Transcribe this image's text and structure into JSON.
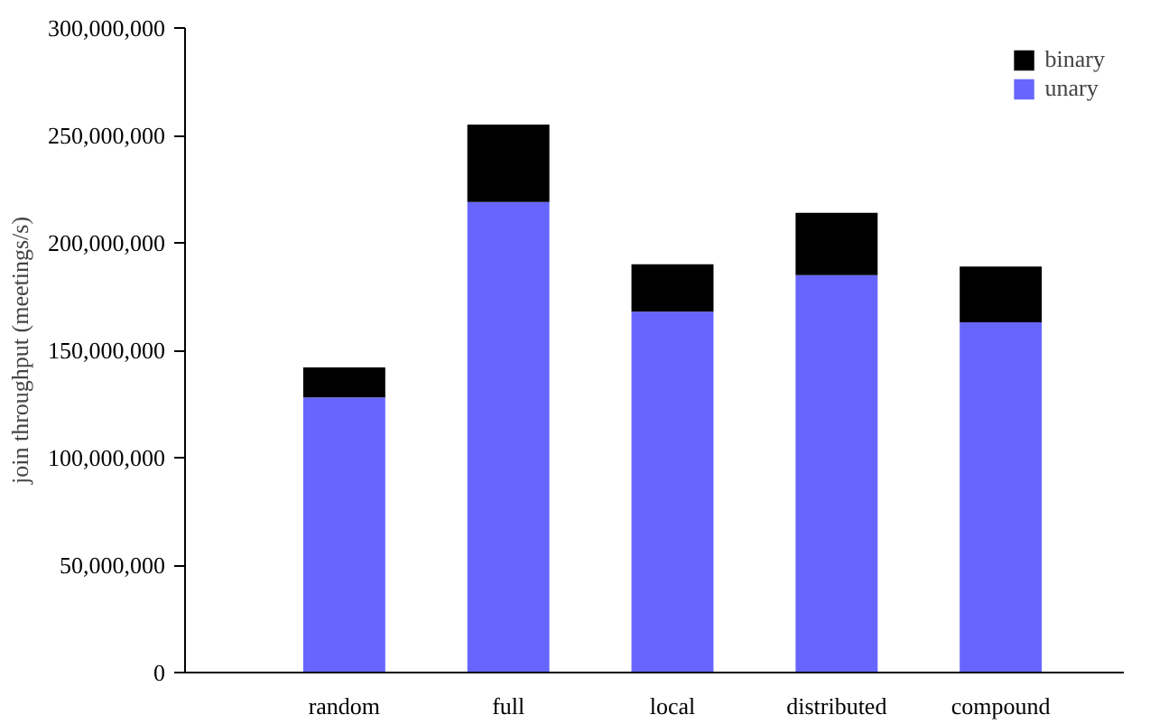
{
  "chart_data": {
    "type": "bar",
    "stacked": true,
    "ylabel": "join throughput (meetings/s)",
    "categories": [
      "random",
      "full",
      "local",
      "distributed",
      "compound"
    ],
    "series": [
      {
        "name": "unary",
        "color": "#6666ff",
        "values": [
          128000000,
          219000000,
          168000000,
          185000000,
          163000000
        ]
      },
      {
        "name": "binary",
        "color": "#000000",
        "values": [
          14000000,
          36000000,
          22000000,
          29000000,
          26000000
        ]
      }
    ],
    "ylim": [
      0,
      300000000
    ],
    "yticks": [
      {
        "value": 0,
        "label": "0"
      },
      {
        "value": 50000000,
        "label": "50,000,000"
      },
      {
        "value": 100000000,
        "label": "100,000,000"
      },
      {
        "value": 150000000,
        "label": "150,000,000"
      },
      {
        "value": 200000000,
        "label": "200,000,000"
      },
      {
        "value": 250000000,
        "label": "250,000,000"
      },
      {
        "value": 300000000,
        "label": "300,000,000"
      }
    ],
    "grid": false,
    "legend": "top right"
  }
}
